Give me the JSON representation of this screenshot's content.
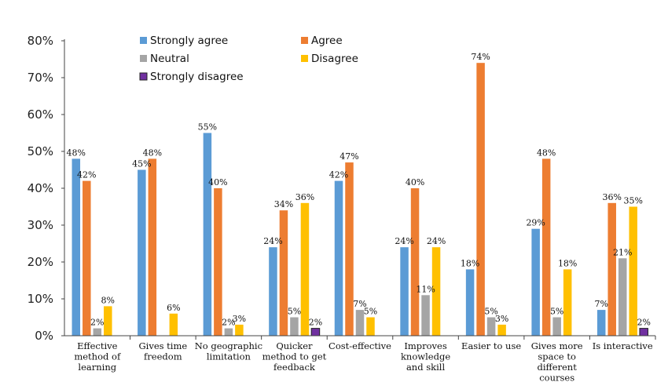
{
  "chart_data": {
    "type": "bar",
    "title": "",
    "xlabel": "",
    "ylabel": "",
    "ylim": [
      0,
      80
    ],
    "yticks": [
      "0%",
      "10%",
      "20%",
      "30%",
      "40%",
      "50%",
      "60%",
      "70%",
      "80%"
    ],
    "grid": false,
    "legend_position": "top",
    "categories": [
      [
        "Effective",
        "method of",
        "learning"
      ],
      [
        "Gives time",
        "freedom"
      ],
      [
        "No geographic",
        "limitation"
      ],
      [
        "Quicker",
        "method to get",
        "feedback"
      ],
      [
        "Cost-effective"
      ],
      [
        "Improves",
        "knowledge",
        "and skill"
      ],
      [
        "Easier to use"
      ],
      [
        "Gives more",
        "space to",
        "different",
        "courses"
      ],
      [
        "Is interactive"
      ]
    ],
    "series": [
      {
        "name": "Strongly agree",
        "color": "#5B9BD5",
        "values": [
          48,
          45,
          55,
          24,
          42,
          24,
          18,
          29,
          7
        ],
        "labels": [
          "48%",
          "45%",
          "55%",
          "24%",
          "42%",
          "24%",
          "18%",
          "29%",
          "7%"
        ]
      },
      {
        "name": "Agree",
        "color": "#ED7D31",
        "values": [
          42,
          48,
          40,
          34,
          47,
          40,
          74,
          48,
          36
        ],
        "labels": [
          "42%",
          "48%",
          "40%",
          "34%",
          "47%",
          "40%",
          "74%",
          "48%",
          "36%"
        ]
      },
      {
        "name": "Neutral",
        "color": "#A5A5A5",
        "values": [
          2,
          0,
          2,
          5,
          7,
          11,
          5,
          5,
          21
        ],
        "labels": [
          "2%",
          "",
          "2%",
          "5%",
          "7%",
          "11%",
          "5%",
          "5%",
          "21%"
        ]
      },
      {
        "name": "Disagree",
        "color": "#FFC000",
        "values": [
          8,
          6,
          3,
          36,
          5,
          24,
          3,
          18,
          35
        ],
        "labels": [
          "8%",
          "6%",
          "3%",
          "36%",
          "5%",
          "24%",
          "3%",
          "18%",
          "35%"
        ]
      },
      {
        "name": "Strongly disagree",
        "color": "#7030A0",
        "values": [
          0,
          0,
          0,
          2,
          0,
          0,
          0,
          0,
          2
        ],
        "labels": [
          "",
          "",
          "",
          "2%",
          "",
          "",
          "",
          "",
          "2%"
        ]
      }
    ]
  }
}
